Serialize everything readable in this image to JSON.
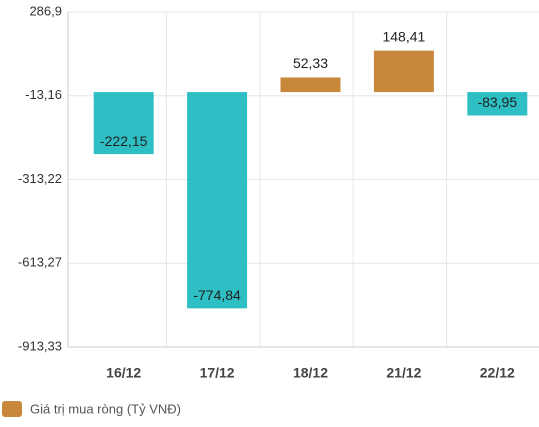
{
  "chart_data": {
    "type": "bar",
    "categories": [
      "16/12",
      "17/12",
      "18/12",
      "21/12",
      "22/12"
    ],
    "values": [
      -222.15,
      -774.84,
      52.33,
      148.41,
      -83.95
    ],
    "value_labels": [
      "-222,15",
      "-774,84",
      "52,33",
      "148,41",
      "-83,95"
    ],
    "color_positive": "#c8873a",
    "color_negative": "#2ebfc4",
    "ylim": [
      -913.33,
      286.9
    ],
    "yticks": [
      {
        "value": -913.33,
        "label": "-913,33"
      },
      {
        "value": -613.27,
        "label": "-613,27"
      },
      {
        "value": -313.22,
        "label": "-313,22"
      },
      {
        "value": -13.16,
        "label": "-13,16"
      },
      {
        "value": 286.9,
        "label": "286,9"
      }
    ],
    "grid": true,
    "legend": {
      "label": "Giá trị mua ròng (Tỷ VNĐ)",
      "color": "#c8873a"
    }
  }
}
